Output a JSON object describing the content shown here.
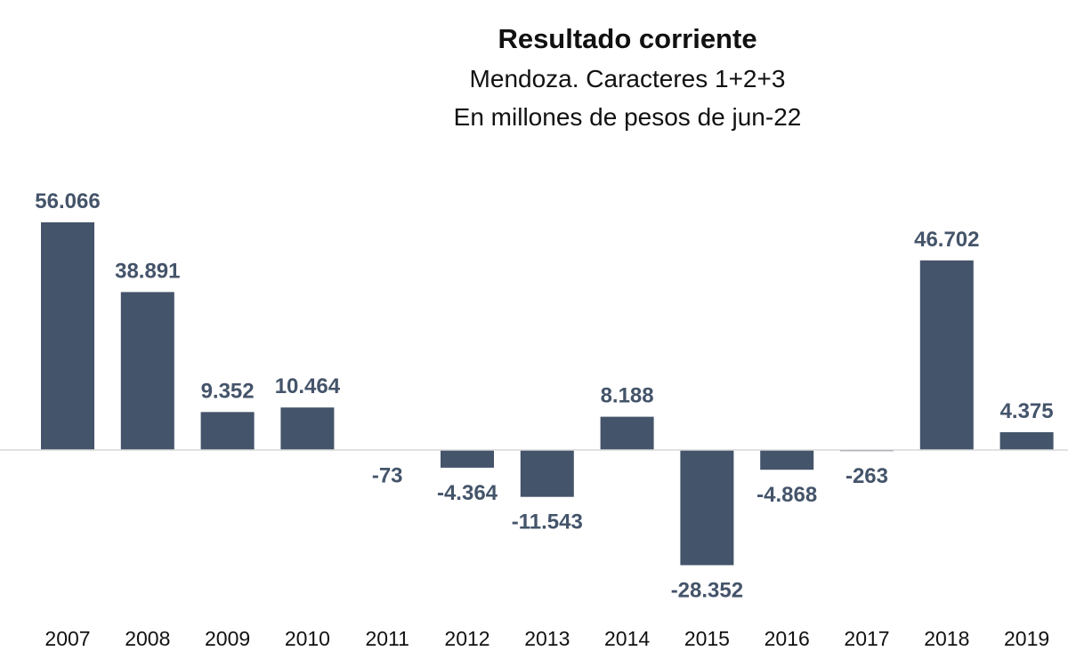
{
  "chart_data": {
    "type": "bar",
    "title": "Resultado corriente",
    "subtitle": [
      "Mendoza. Caracteres 1+2+3",
      "En millones de pesos de jun-22"
    ],
    "xlabel": "",
    "ylabel": "",
    "categories": [
      "2007",
      "2008",
      "2009",
      "2010",
      "2011",
      "2012",
      "2013",
      "2014",
      "2015",
      "2016",
      "2017",
      "2018",
      "2019"
    ],
    "values": [
      56066,
      38891,
      9352,
      10464,
      -73,
      -4364,
      -11543,
      8188,
      -28352,
      -4868,
      -263,
      46702,
      4375
    ],
    "value_labels": [
      "56.066",
      "38.891",
      "9.352",
      "10.464",
      "-73",
      "-4.364",
      "-11.543",
      "8.188",
      "-28.352",
      "-4.868",
      "-263",
      "46.702",
      "4.375"
    ],
    "ylim": [
      -33000,
      60000
    ],
    "grid": false,
    "legend": "none",
    "colors": {
      "bar": "#44546a",
      "label": "#44546a",
      "axis": "#d9d9d9",
      "tick": "#111111"
    }
  }
}
